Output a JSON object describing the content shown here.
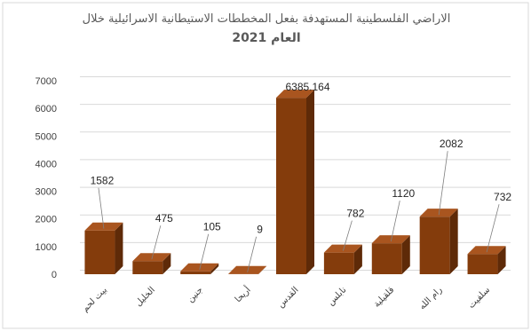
{
  "chart_data": {
    "type": "bar",
    "title_line1": "الاراضي الفلسطينية المستهدفة بفعل المخططات الاستيطانية الاسرائيلية خلال",
    "title_line2": "العام 2021",
    "categories": [
      "بيت لحم",
      "الخليل",
      "جنين",
      "أريحا",
      "القدس",
      "نابلس",
      "قلقيلية",
      "رام الله",
      "سلفيت"
    ],
    "values": [
      1582,
      475,
      105,
      9,
      6385.164,
      782,
      1120,
      2082,
      732
    ],
    "data_labels": [
      "1582",
      "475",
      "105",
      "9",
      "6385.164",
      "782",
      "1120",
      "2082",
      "732"
    ],
    "yticks": [
      "0",
      "1000",
      "2000",
      "3000",
      "4000",
      "5000",
      "6000",
      "7000"
    ],
    "ylim": [
      0,
      7000
    ],
    "grid": true,
    "bar_color": "#843c0c",
    "bar_top_color": "#a9551f",
    "bar_side_color": "#5e2a08",
    "legend": "none"
  }
}
